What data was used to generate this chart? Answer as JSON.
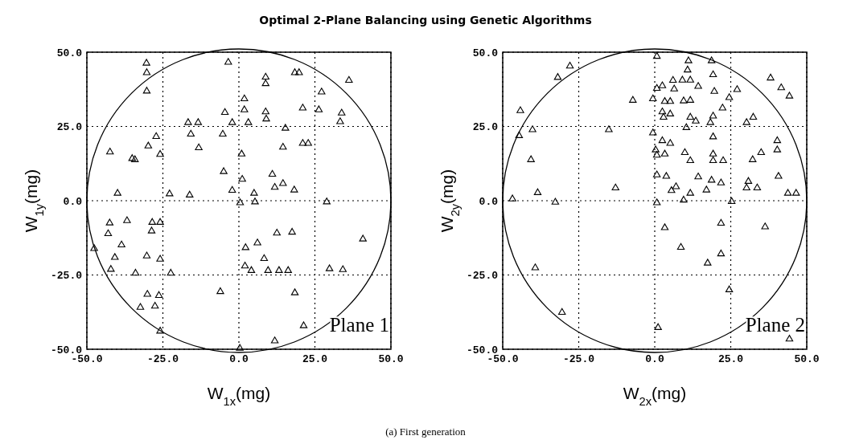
{
  "chart_data": [
    {
      "type": "scatter",
      "title": "Optimal 2-Plane Balancing using Genetic Algorithms",
      "xlabel": "W$_{1x}$(mg)",
      "ylabel": "W$_{1y}$(mg)",
      "annotations": [
        "Plane 1",
        "(a) First generation"
      ],
      "marker": "triangle",
      "grid": true,
      "xlim": [
        -50,
        50
      ],
      "ylim": [
        -50,
        50
      ],
      "xticks": [
        {
          "value": -50,
          "label": "-50.0"
        },
        {
          "value": -25,
          "label": "-25.0"
        },
        {
          "value": 0,
          "label": "0.0"
        },
        {
          "value": 25,
          "label": "25.0"
        },
        {
          "value": 50,
          "label": "50.0"
        }
      ],
      "yticks": [
        {
          "value": -50,
          "label": "-50.0"
        },
        {
          "value": -25,
          "label": "-25.0"
        },
        {
          "value": 0,
          "label": "0.0"
        },
        {
          "value": 25,
          "label": "25.0"
        },
        {
          "value": 50,
          "label": "50.0"
        }
      ],
      "series": [
        {
          "color": "#000000",
          "x": [
            -30.4,
            -30.3,
            -30.3,
            -3.5,
            8.8,
            8.8,
            18.4,
            19.8,
            36.2,
            27.2,
            1.8,
            1.8,
            -4.6,
            8.8,
            9.0,
            21.0,
            26.3,
            33.8,
            33.3,
            -16.7,
            -13.4,
            -2.2,
            3.1,
            15.3,
            -27.2,
            -15.8,
            -5.3,
            -29.8,
            -42.4,
            -35.1,
            -34.2,
            -25.9,
            -13.2,
            0.9,
            14.5,
            21.0,
            22.8,
            -5.0,
            1.1,
            11.0,
            11.8,
            14.5,
            18.2,
            -2.2,
            5.0,
            -39.9,
            -22.8,
            -16.2,
            0.4,
            5.3,
            28.9,
            -42.5,
            -36.8,
            -28.5,
            -25.9,
            -43.0,
            -28.7,
            -38.6,
            -47.6,
            -40.8,
            -30.3,
            -25.9,
            -42.1,
            -34.0,
            -22.4,
            2.2,
            6.1,
            12.5,
            17.5,
            40.8,
            8.3,
            2.0,
            4.1,
            9.6,
            13.2,
            16.2,
            29.8,
            34.2,
            -30.1,
            -26.3,
            -6.1,
            18.4,
            -32.4,
            -27.6,
            -25.9,
            21.3,
            11.8,
            0.3
          ],
          "values": [
            46.3,
            43.1,
            36.9,
            46.6,
            41.6,
            39.4,
            43.1,
            43.1,
            40.5,
            36.6,
            34.3,
            30.6,
            29.7,
            29.9,
            27.5,
            31.2,
            30.6,
            29.5,
            26.6,
            26.3,
            26.3,
            26.3,
            26.3,
            24.4,
            21.6,
            22.4,
            22.4,
            18.4,
            16.4,
            14.2,
            13.8,
            15.6,
            17.8,
            15.7,
            18.0,
            19.3,
            19.3,
            9.8,
            7.2,
            8.9,
            4.5,
            5.8,
            3.6,
            3.5,
            2.5,
            2.5,
            2.3,
            1.9,
            -0.7,
            -0.4,
            -0.4,
            -7.5,
            -6.7,
            -7.3,
            -7.3,
            -11.1,
            -10.2,
            -14.9,
            -16.1,
            -19.1,
            -18.6,
            -19.7,
            -23.1,
            -24.4,
            -24.4,
            -15.8,
            -14.2,
            -10.9,
            -10.6,
            -12.9,
            -19.5,
            -22.0,
            -23.5,
            -23.5,
            -23.5,
            -23.5,
            -22.9,
            -23.2,
            -31.5,
            -31.9,
            -30.6,
            -31.0,
            -35.9,
            -35.5,
            -43.9,
            -42.1,
            -47.2,
            -49.7
          ]
        }
      ]
    },
    {
      "type": "scatter",
      "xlabel": "W$_{2x}$(mg)",
      "ylabel": "W$_{2y}$(mg)",
      "annotations": [
        "Plane 2"
      ],
      "marker": "triangle",
      "grid": true,
      "xlim": [
        -50,
        50
      ],
      "ylim": [
        -50,
        50
      ],
      "xticks": [
        {
          "value": -50,
          "label": "-50.0"
        },
        {
          "value": -25,
          "label": "-25.0"
        },
        {
          "value": 0,
          "label": "0.0"
        },
        {
          "value": 25,
          "label": "25.0"
        },
        {
          "value": 50,
          "label": "50.0"
        }
      ],
      "yticks": [
        {
          "value": -50,
          "label": "-50.0"
        },
        {
          "value": -25,
          "label": "-25.0"
        },
        {
          "value": 0,
          "label": "0.0"
        },
        {
          "value": 25,
          "label": "25.0"
        },
        {
          "value": 50,
          "label": "50.0"
        }
      ],
      "series": [
        {
          "color": "#000000",
          "x": [
            0.7,
            11.1,
            10.8,
            18.7,
            19.2,
            -27.9,
            -31.9,
            6.0,
            9.1,
            11.7,
            14.3,
            2.5,
            0.7,
            6.4,
            27.1,
            38.1,
            41.6,
            44.3,
            19.6,
            -7.2,
            -0.6,
            3.3,
            5.1,
            9.5,
            11.7,
            24.5,
            22.3,
            2.5,
            5.1,
            2.9,
            11.7,
            13.5,
            19.2,
            18.3,
            32.4,
            30.2,
            10.4,
            -44.2,
            -40.2,
            -44.6,
            -15.1,
            -40.7,
            -0.6,
            2.5,
            5.1,
            19.2,
            40.3,
            40.3,
            0.3,
            0.7,
            3.3,
            9.9,
            11.7,
            19.2,
            19.2,
            22.5,
            35.0,
            32.2,
            0.7,
            3.8,
            14.3,
            18.7,
            21.8,
            30.8,
            30.2,
            33.7,
            40.7,
            43.8,
            46.5,
            -12.9,
            5.5,
            7.0,
            11.7,
            17.0,
            -38.5,
            -32.7,
            -46.8,
            0.7,
            9.5,
            25.3,
            3.3,
            21.8,
            36.3,
            8.6,
            21.8,
            17.4,
            -39.3,
            24.5,
            -30.5,
            1.1,
            44.3
          ],
          "values": [
            48.6,
            47.1,
            44.0,
            47.1,
            42.4,
            45.3,
            41.5,
            40.5,
            40.6,
            40.6,
            38.5,
            38.7,
            37.8,
            37.6,
            37.4,
            41.3,
            38.0,
            35.2,
            36.8,
            33.8,
            34.3,
            33.4,
            33.4,
            33.6,
            33.8,
            34.7,
            31.2,
            29.9,
            29.2,
            28.1,
            28.1,
            26.8,
            28.5,
            26.3,
            28.1,
            26.3,
            24.6,
            30.3,
            23.9,
            21.9,
            23.9,
            13.8,
            22.8,
            20.2,
            19.3,
            21.5,
            20.2,
            17.1,
            17.1,
            15.3,
            15.7,
            16.2,
            13.5,
            15.7,
            13.5,
            13.5,
            16.2,
            13.8,
            8.7,
            8.2,
            8.0,
            6.9,
            6.0,
            6.5,
            4.3,
            4.3,
            8.2,
            2.5,
            2.5,
            4.3,
            3.4,
            4.7,
            2.5,
            3.6,
            2.7,
            -0.5,
            0.6,
            -0.7,
            0.2,
            -0.3,
            -9.1,
            -7.6,
            -8.8,
            -15.7,
            -17.9,
            -21.0,
            -22.6,
            -30.0,
            -37.6,
            -42.7,
            -46.6
          ]
        }
      ]
    }
  ]
}
